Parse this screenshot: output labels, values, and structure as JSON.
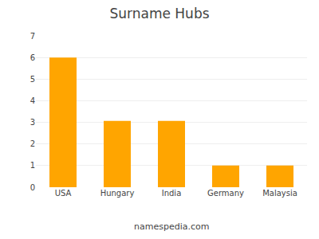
{
  "chart_data": {
    "type": "bar",
    "title": "Surname Hubs",
    "categories": [
      "USA",
      "Hungary",
      "India",
      "Germany",
      "Malaysia"
    ],
    "values": [
      6,
      3.07,
      3.07,
      1,
      1
    ],
    "color": "#FFA500",
    "ylim": [
      0,
      7
    ],
    "yticks": [
      0,
      1,
      2,
      3,
      4,
      5,
      6,
      7
    ],
    "grid": true,
    "annotations": [
      "namespedia.com"
    ]
  }
}
